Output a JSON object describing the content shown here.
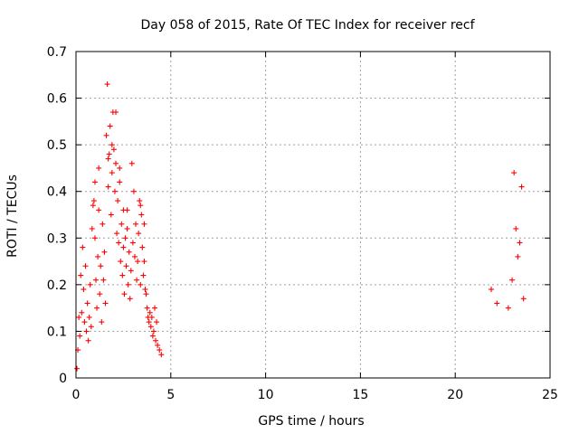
{
  "chart_data": {
    "type": "scatter",
    "title": "Day 058 of 2015, Rate Of TEC Index for receiver recf",
    "xlabel": "GPS time / hours",
    "ylabel": "ROTI / TECUs",
    "xlim": [
      0,
      25
    ],
    "ylim": [
      0,
      0.7
    ],
    "xticks": [
      0,
      5,
      10,
      15,
      20,
      25
    ],
    "xtick_labels": [
      "0",
      "5",
      "10",
      "15",
      "20",
      "25"
    ],
    "yticks": [
      0,
      0.1,
      0.2,
      0.3,
      0.4,
      0.5,
      0.6,
      0.7
    ],
    "ytick_labels": [
      "0",
      "0.1",
      "0.2",
      "0.3",
      "0.4",
      "0.5",
      "0.6",
      "0.7"
    ],
    "grid": true,
    "marker": "+",
    "color": "#ff0000",
    "series": [
      {
        "name": "ROTI",
        "points": [
          [
            0.05,
            0.02
          ],
          [
            0.1,
            0.06
          ],
          [
            0.15,
            0.13
          ],
          [
            0.2,
            0.09
          ],
          [
            0.25,
            0.22
          ],
          [
            0.3,
            0.14
          ],
          [
            0.35,
            0.28
          ],
          [
            0.4,
            0.19
          ],
          [
            0.45,
            0.12
          ],
          [
            0.5,
            0.24
          ],
          [
            0.55,
            0.1
          ],
          [
            0.6,
            0.16
          ],
          [
            0.65,
            0.08
          ],
          [
            0.7,
            0.13
          ],
          [
            0.75,
            0.2
          ],
          [
            0.8,
            0.11
          ],
          [
            0.85,
            0.32
          ],
          [
            0.9,
            0.37
          ],
          [
            0.95,
            0.38
          ],
          [
            1.0,
            0.3
          ],
          [
            1.05,
            0.21
          ],
          [
            1.1,
            0.15
          ],
          [
            1.15,
            0.26
          ],
          [
            1.2,
            0.45
          ],
          [
            1.25,
            0.18
          ],
          [
            1.3,
            0.24
          ],
          [
            1.35,
            0.12
          ],
          [
            1.4,
            0.33
          ],
          [
            1.45,
            0.21
          ],
          [
            1.5,
            0.27
          ],
          [
            1.55,
            0.16
          ],
          [
            1.6,
            0.52
          ],
          [
            1.65,
            0.63
          ],
          [
            1.7,
            0.41
          ],
          [
            1.75,
            0.48
          ],
          [
            1.8,
            0.54
          ],
          [
            1.85,
            0.35
          ],
          [
            1.9,
            0.44
          ],
          [
            1.95,
            0.57
          ],
          [
            2.0,
            0.49
          ],
          [
            2.05,
            0.4
          ],
          [
            2.1,
            0.46
          ],
          [
            2.15,
            0.31
          ],
          [
            2.2,
            0.38
          ],
          [
            2.25,
            0.29
          ],
          [
            2.3,
            0.42
          ],
          [
            2.35,
            0.25
          ],
          [
            2.4,
            0.33
          ],
          [
            2.45,
            0.22
          ],
          [
            2.5,
            0.28
          ],
          [
            2.55,
            0.18
          ],
          [
            2.6,
            0.3
          ],
          [
            2.65,
            0.24
          ],
          [
            2.7,
            0.36
          ],
          [
            2.75,
            0.2
          ],
          [
            2.8,
            0.27
          ],
          [
            2.85,
            0.17
          ],
          [
            2.9,
            0.23
          ],
          [
            2.95,
            0.46
          ],
          [
            3.0,
            0.29
          ],
          [
            3.05,
            0.4
          ],
          [
            3.1,
            0.26
          ],
          [
            3.15,
            0.33
          ],
          [
            3.2,
            0.21
          ],
          [
            3.25,
            0.25
          ],
          [
            3.3,
            0.31
          ],
          [
            3.35,
            0.38
          ],
          [
            3.4,
            0.2
          ],
          [
            3.45,
            0.35
          ],
          [
            3.5,
            0.28
          ],
          [
            3.55,
            0.22
          ],
          [
            3.6,
            0.25
          ],
          [
            3.65,
            0.19
          ],
          [
            3.7,
            0.18
          ],
          [
            3.75,
            0.15
          ],
          [
            3.8,
            0.13
          ],
          [
            3.85,
            0.12
          ],
          [
            3.9,
            0.14
          ],
          [
            3.95,
            0.11
          ],
          [
            4.0,
            0.13
          ],
          [
            4.05,
            0.09
          ],
          [
            4.1,
            0.1
          ],
          [
            4.15,
            0.15
          ],
          [
            4.2,
            0.08
          ],
          [
            4.25,
            0.12
          ],
          [
            4.3,
            0.07
          ],
          [
            4.4,
            0.06
          ],
          [
            4.5,
            0.05
          ],
          [
            1.0,
            0.42
          ],
          [
            1.2,
            0.36
          ],
          [
            1.7,
            0.47
          ],
          [
            1.9,
            0.5
          ],
          [
            2.1,
            0.57
          ],
          [
            2.3,
            0.45
          ],
          [
            2.5,
            0.36
          ],
          [
            2.7,
            0.32
          ],
          [
            3.4,
            0.37
          ],
          [
            3.6,
            0.33
          ],
          [
            23.1,
            0.44
          ],
          [
            23.5,
            0.41
          ],
          [
            23.2,
            0.32
          ],
          [
            23.4,
            0.29
          ],
          [
            23.3,
            0.26
          ],
          [
            23.0,
            0.21
          ],
          [
            23.6,
            0.17
          ],
          [
            22.8,
            0.15
          ],
          [
            22.2,
            0.16
          ],
          [
            21.9,
            0.19
          ]
        ]
      }
    ]
  }
}
